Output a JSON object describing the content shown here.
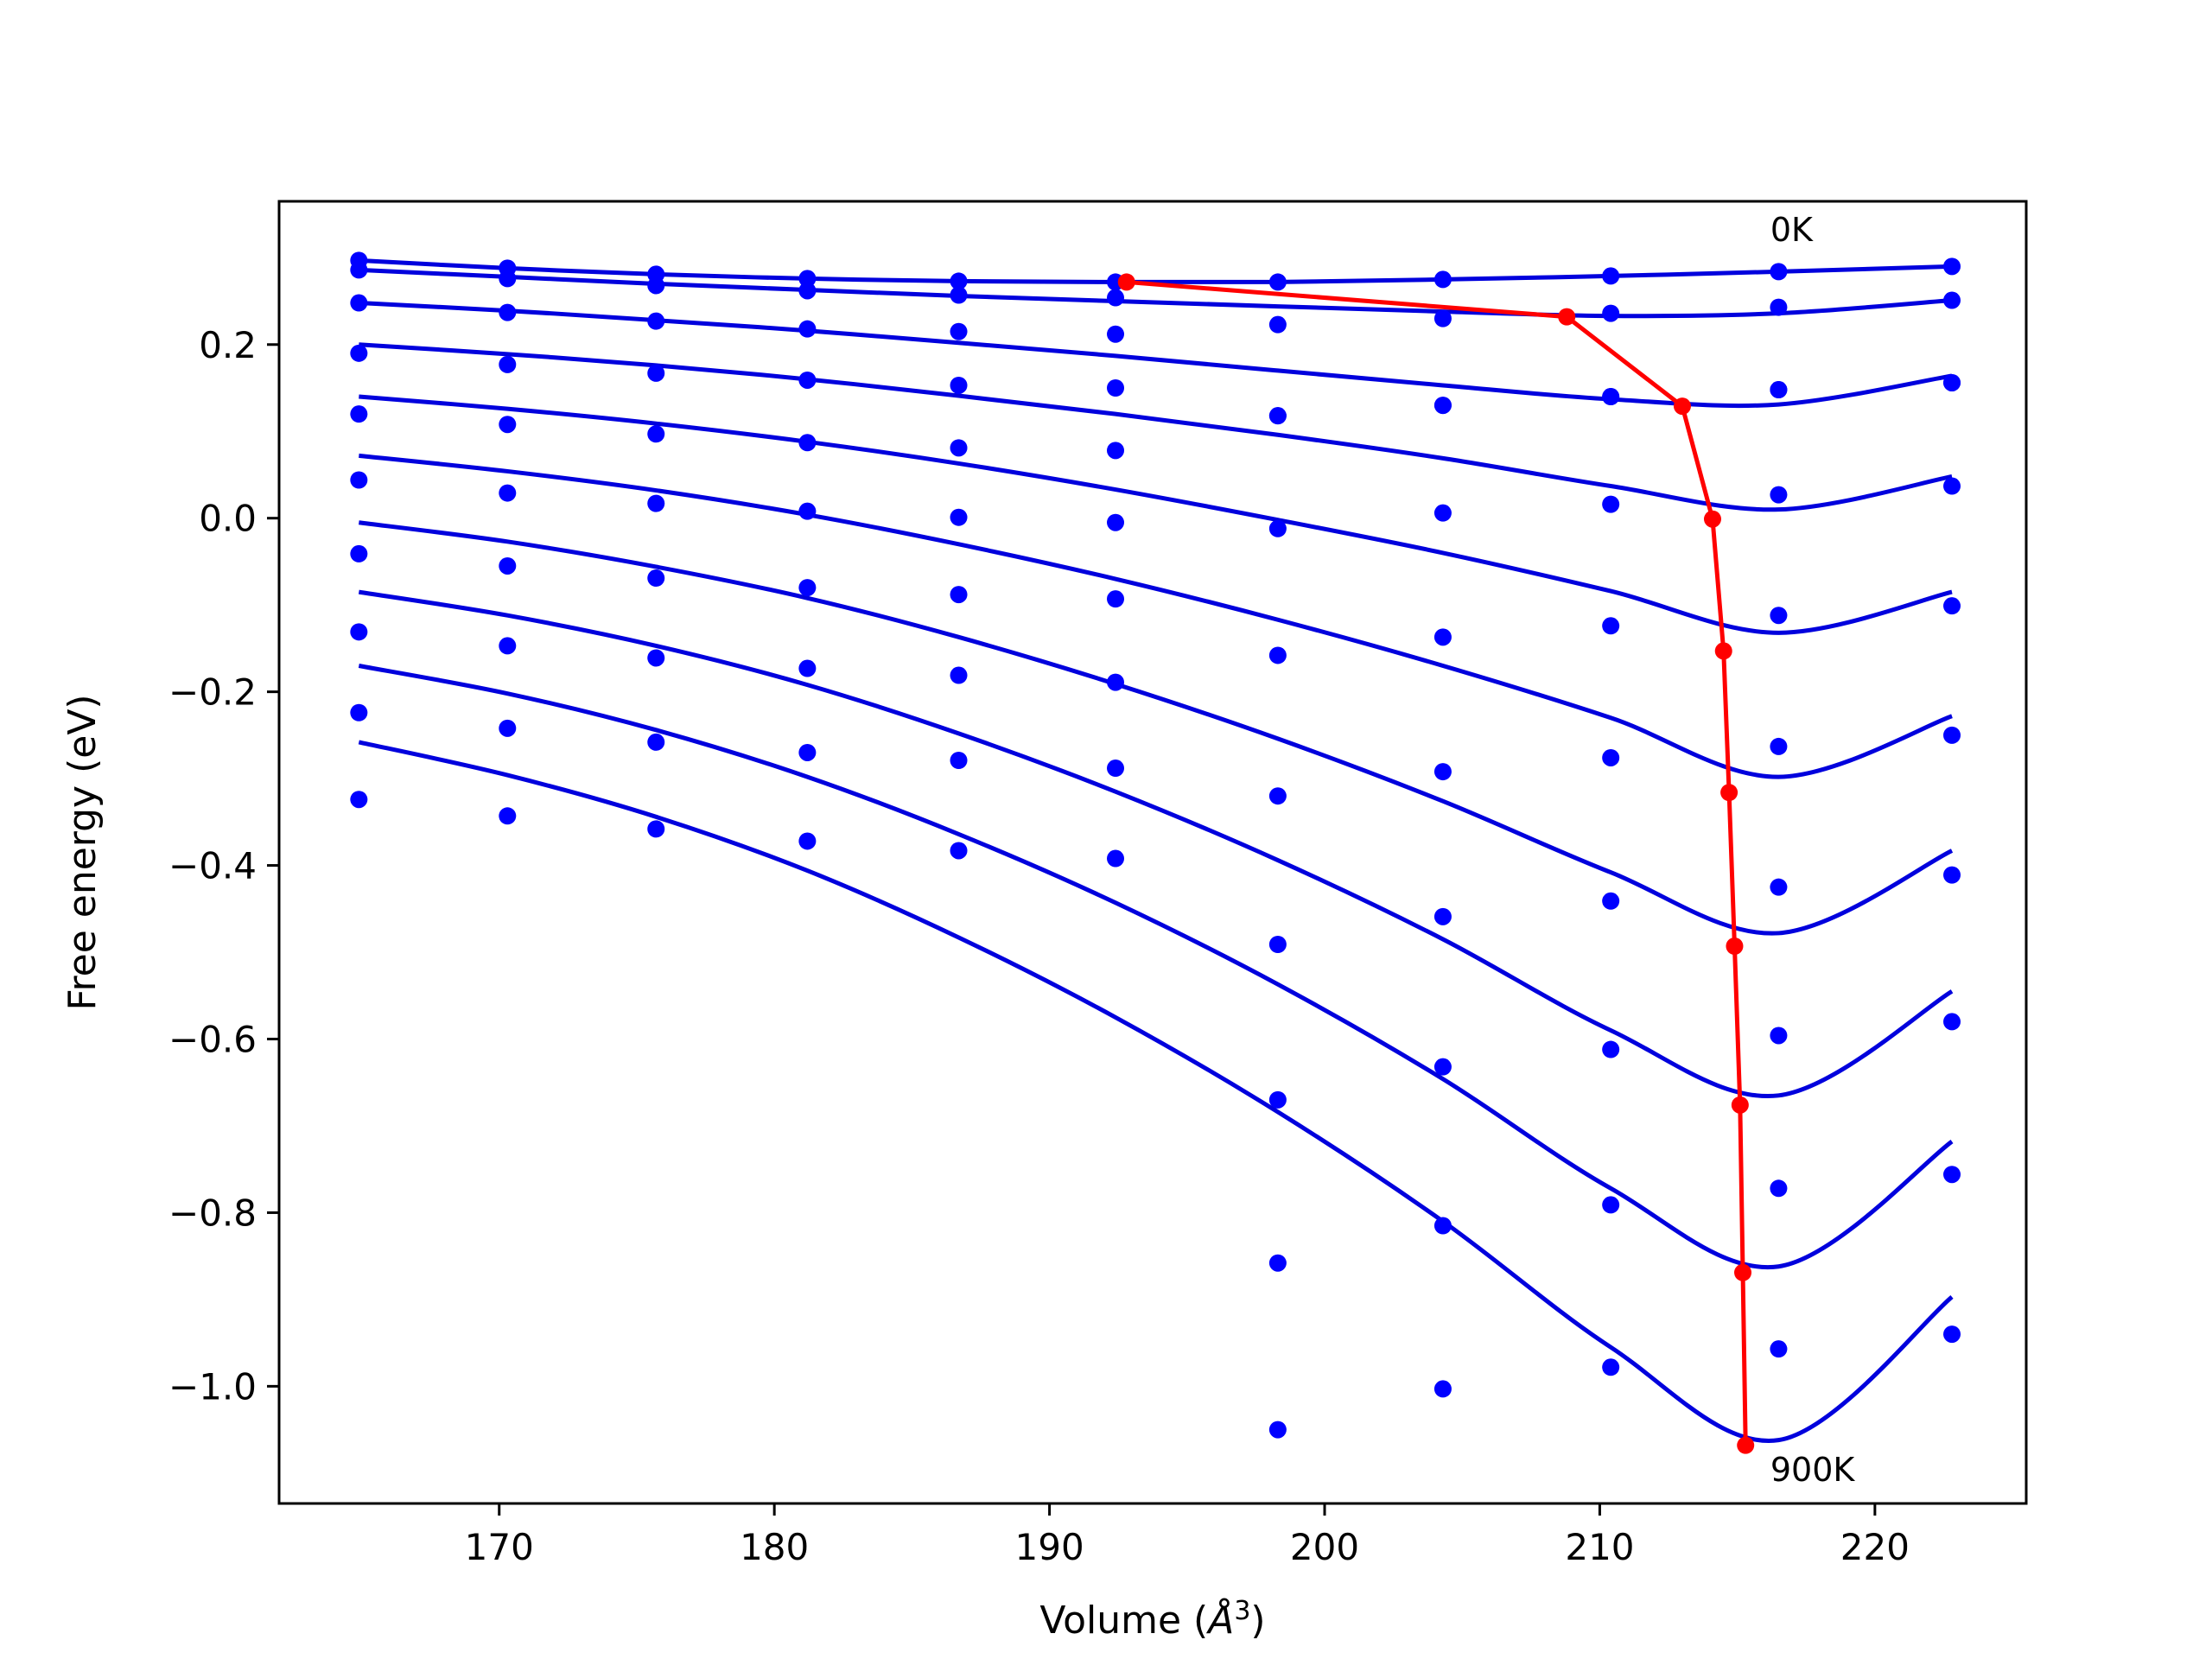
{
  "chart_data": {
    "type": "scatter",
    "title": "",
    "xlabel_prefix": "Volume (",
    "xlabel_unit": "Å",
    "xlabel_exp": "3",
    "xlabel_suffix": ")",
    "ylabel": "Free energy (eV)",
    "xlim": [
      162,
      225.5
    ],
    "ylim": [
      -1.135,
      0.365
    ],
    "xticks": [
      170,
      180,
      190,
      200,
      210,
      220
    ],
    "xtick_labels": [
      "170",
      "180",
      "190",
      "200",
      "210",
      "220"
    ],
    "yticks": [
      -1.0,
      -0.8,
      -0.6,
      -0.4,
      -0.2,
      0.0,
      0.2
    ],
    "ytick_labels": [
      "−1.0",
      "−0.8",
      "−0.6",
      "−0.4",
      "−0.2",
      "0.0",
      "0.2"
    ],
    "grid": false,
    "colors": {
      "points": "#0000ff",
      "fits": "#0000dd",
      "minima": "#ff0000"
    },
    "annotations": [
      {
        "text": "0K",
        "x": 216.2,
        "y": 0.333
      },
      {
        "text": "900K",
        "x": 216.2,
        "y": -1.095
      }
    ],
    "volumes": [
      164.9,
      170.3,
      175.7,
      181.2,
      186.7,
      192.4,
      198.3,
      204.3,
      210.4,
      216.5,
      222.8
    ],
    "series": [
      {
        "temperature": "0K",
        "points": [
          0.297,
          0.288,
          0.281,
          0.276,
          0.273,
          0.272,
          0.272,
          0.275,
          0.279,
          0.284,
          0.29
        ],
        "fit_x": [
          164.9,
          170.3,
          175.7,
          181.2,
          186.7,
          192.4,
          198.3,
          204.3,
          210.4,
          216.5,
          222.8
        ],
        "fit_y": [
          0.297,
          0.288,
          0.281,
          0.276,
          0.273,
          0.272,
          0.272,
          0.275,
          0.279,
          0.284,
          0.29
        ],
        "minimum": [
          192.8,
          0.272
        ]
      },
      {
        "temperature": "",
        "points": [
          0.286,
          0.276,
          0.268,
          0.262,
          0.257,
          0.254,
          0.223,
          0.23,
          0.236,
          0.243,
          0.251
        ],
        "fit_x": [
          164.9,
          170.3,
          175.7,
          181.2,
          186.7,
          192.4,
          198.3,
          204.3,
          210.4,
          216.5,
          222.8
        ],
        "fit_y": [
          0.286,
          0.278,
          0.27,
          0.263,
          0.256,
          0.25,
          0.244,
          0.238,
          0.233,
          0.236,
          0.251
        ],
        "minimum": [
          208.8,
          0.232
        ]
      },
      {
        "temperature": "",
        "points": [
          0.248,
          0.237,
          0.227,
          0.218,
          0.215,
          0.212,
          0.118,
          0.13,
          0.14,
          0.148,
          0.156
        ],
        "fit_x": [
          164.9,
          170.3,
          175.7,
          181.2,
          186.7,
          192.4,
          198.3,
          204.3,
          210.4,
          216.5,
          222.8
        ],
        "fit_y": [
          0.248,
          0.239,
          0.228,
          0.216,
          0.202,
          0.187,
          0.17,
          0.153,
          0.137,
          0.131,
          0.164
        ],
        "minimum": [
          213.0,
          0.129
        ]
      },
      {
        "temperature": "",
        "points": [
          0.19,
          0.177,
          0.167,
          0.159,
          0.153,
          0.15,
          0.118,
          0.13,
          0.14,
          0.148,
          0.156
        ],
        "fit_x": [
          164.9,
          170.3,
          175.7,
          181.2,
          186.7,
          192.4,
          198.3,
          204.3,
          210.4,
          216.5,
          222.8
        ],
        "fit_y": [
          0.2,
          0.189,
          0.176,
          0.16,
          0.141,
          0.12,
          0.096,
          0.069,
          0.037,
          0.01,
          0.048
        ],
        "minimum": [
          214.1,
          -0.001
        ]
      },
      {
        "temperature": "",
        "points": [
          0.12,
          0.108,
          0.097,
          0.087,
          0.081,
          0.078,
          -0.012,
          0.006,
          0.016,
          0.027,
          0.037
        ],
        "fit_x": [
          164.9,
          170.3,
          175.7,
          181.2,
          186.7,
          192.4,
          198.3,
          204.3,
          210.4,
          216.5,
          222.8
        ],
        "fit_y": [
          0.14,
          0.126,
          0.109,
          0.088,
          0.063,
          0.033,
          -0.002,
          -0.04,
          -0.084,
          -0.132,
          -0.085
        ],
        "minimum": [
          214.5,
          -0.153
        ]
      },
      {
        "temperature": "",
        "points": [
          0.044,
          0.029,
          0.017,
          0.008,
          0.001,
          -0.005,
          -0.158,
          -0.137,
          -0.124,
          -0.112,
          -0.101
        ],
        "fit_x": [
          164.9,
          170.3,
          175.7,
          181.2,
          186.7,
          192.4,
          198.3,
          204.3,
          210.4,
          216.5,
          222.8
        ],
        "fit_y": [
          0.072,
          0.054,
          0.032,
          0.004,
          -0.03,
          -0.07,
          -0.117,
          -0.17,
          -0.23,
          -0.298,
          -0.228
        ],
        "minimum": [
          214.7,
          -0.316
        ]
      },
      {
        "temperature": "",
        "points": [
          -0.041,
          -0.055,
          -0.069,
          -0.08,
          -0.088,
          -0.093,
          -0.32,
          -0.292,
          -0.276,
          -0.263,
          -0.25
        ],
        "fit_x": [
          164.9,
          170.3,
          175.7,
          181.2,
          186.7,
          192.4,
          198.3,
          204.3,
          210.4,
          216.5,
          222.8
        ],
        "fit_y": [
          -0.005,
          -0.027,
          -0.056,
          -0.092,
          -0.137,
          -0.191,
          -0.254,
          -0.326,
          -0.408,
          -0.478,
          -0.383
        ],
        "minimum": [
          214.9,
          -0.493
        ]
      },
      {
        "temperature": "",
        "points": [
          -0.131,
          -0.147,
          -0.161,
          -0.173,
          -0.181,
          -0.189,
          -0.491,
          -0.459,
          -0.441,
          -0.425,
          -0.411
        ],
        "fit_x": [
          164.9,
          170.3,
          175.7,
          181.2,
          186.7,
          192.4,
          198.3,
          204.3,
          210.4,
          216.5,
          222.8
        ],
        "fit_y": [
          -0.085,
          -0.112,
          -0.147,
          -0.192,
          -0.248,
          -0.315,
          -0.394,
          -0.485,
          -0.59,
          -0.665,
          -0.545
        ],
        "minimum": [
          215.1,
          -0.676
        ]
      },
      {
        "temperature": "",
        "points": [
          -0.224,
          -0.242,
          -0.258,
          -0.27,
          -0.279,
          -0.288,
          -0.67,
          -0.632,
          -0.612,
          -0.596,
          -0.58
        ],
        "fit_x": [
          164.9,
          170.3,
          175.7,
          181.2,
          186.7,
          192.4,
          198.3,
          204.3,
          210.4,
          216.5,
          222.8
        ],
        "fit_y": [
          -0.17,
          -0.202,
          -0.244,
          -0.298,
          -0.364,
          -0.443,
          -0.537,
          -0.646,
          -0.772,
          -0.862,
          -0.718
        ],
        "minimum": [
          215.2,
          -0.869
        ]
      },
      {
        "temperature": "900K",
        "points": [
          -0.324,
          -0.343,
          -0.358,
          -0.372,
          -0.383,
          -0.392,
          -0.858,
          -0.815,
          -0.791,
          -0.772,
          -0.756
        ],
        "fit_x": [
          164.9,
          170.3,
          175.7,
          181.2,
          186.7,
          192.4,
          198.3,
          204.3,
          210.4,
          216.5,
          222.8
        ],
        "fit_y": [
          -0.258,
          -0.296,
          -0.344,
          -0.406,
          -0.483,
          -0.575,
          -0.684,
          -0.81,
          -0.955,
          -1.062,
          -0.897
        ],
        "minimum": [
          215.3,
          -1.068
        ]
      }
    ],
    "extra_points": [
      {
        "x": 198.3,
        "y": -1.05
      },
      {
        "x": 204.3,
        "y": -1.003
      },
      {
        "x": 210.4,
        "y": -0.978
      },
      {
        "x": 216.5,
        "y": -0.957
      },
      {
        "x": 222.8,
        "y": -0.94
      }
    ],
    "minima_path": [
      [
        192.8,
        0.272
      ],
      [
        208.8,
        0.232
      ],
      [
        213.0,
        0.129
      ],
      [
        214.1,
        -0.001
      ],
      [
        214.5,
        -0.153
      ],
      [
        214.7,
        -0.316
      ],
      [
        214.9,
        -0.493
      ],
      [
        215.1,
        -0.676
      ],
      [
        215.2,
        -0.869
      ],
      [
        215.3,
        -1.068
      ]
    ]
  }
}
